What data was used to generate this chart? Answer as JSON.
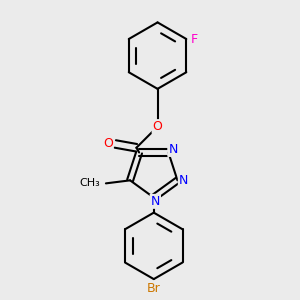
{
  "background_color": "#ebebeb",
  "bond_color": "#000000",
  "bond_width": 1.5,
  "atom_colors": {
    "F": "#ff00cc",
    "O": "#ff0000",
    "N": "#0000ff",
    "Br": "#cc7700",
    "C": "#000000"
  },
  "font_size": 9,
  "fig_size": [
    3.0,
    3.0
  ],
  "dpi": 100
}
